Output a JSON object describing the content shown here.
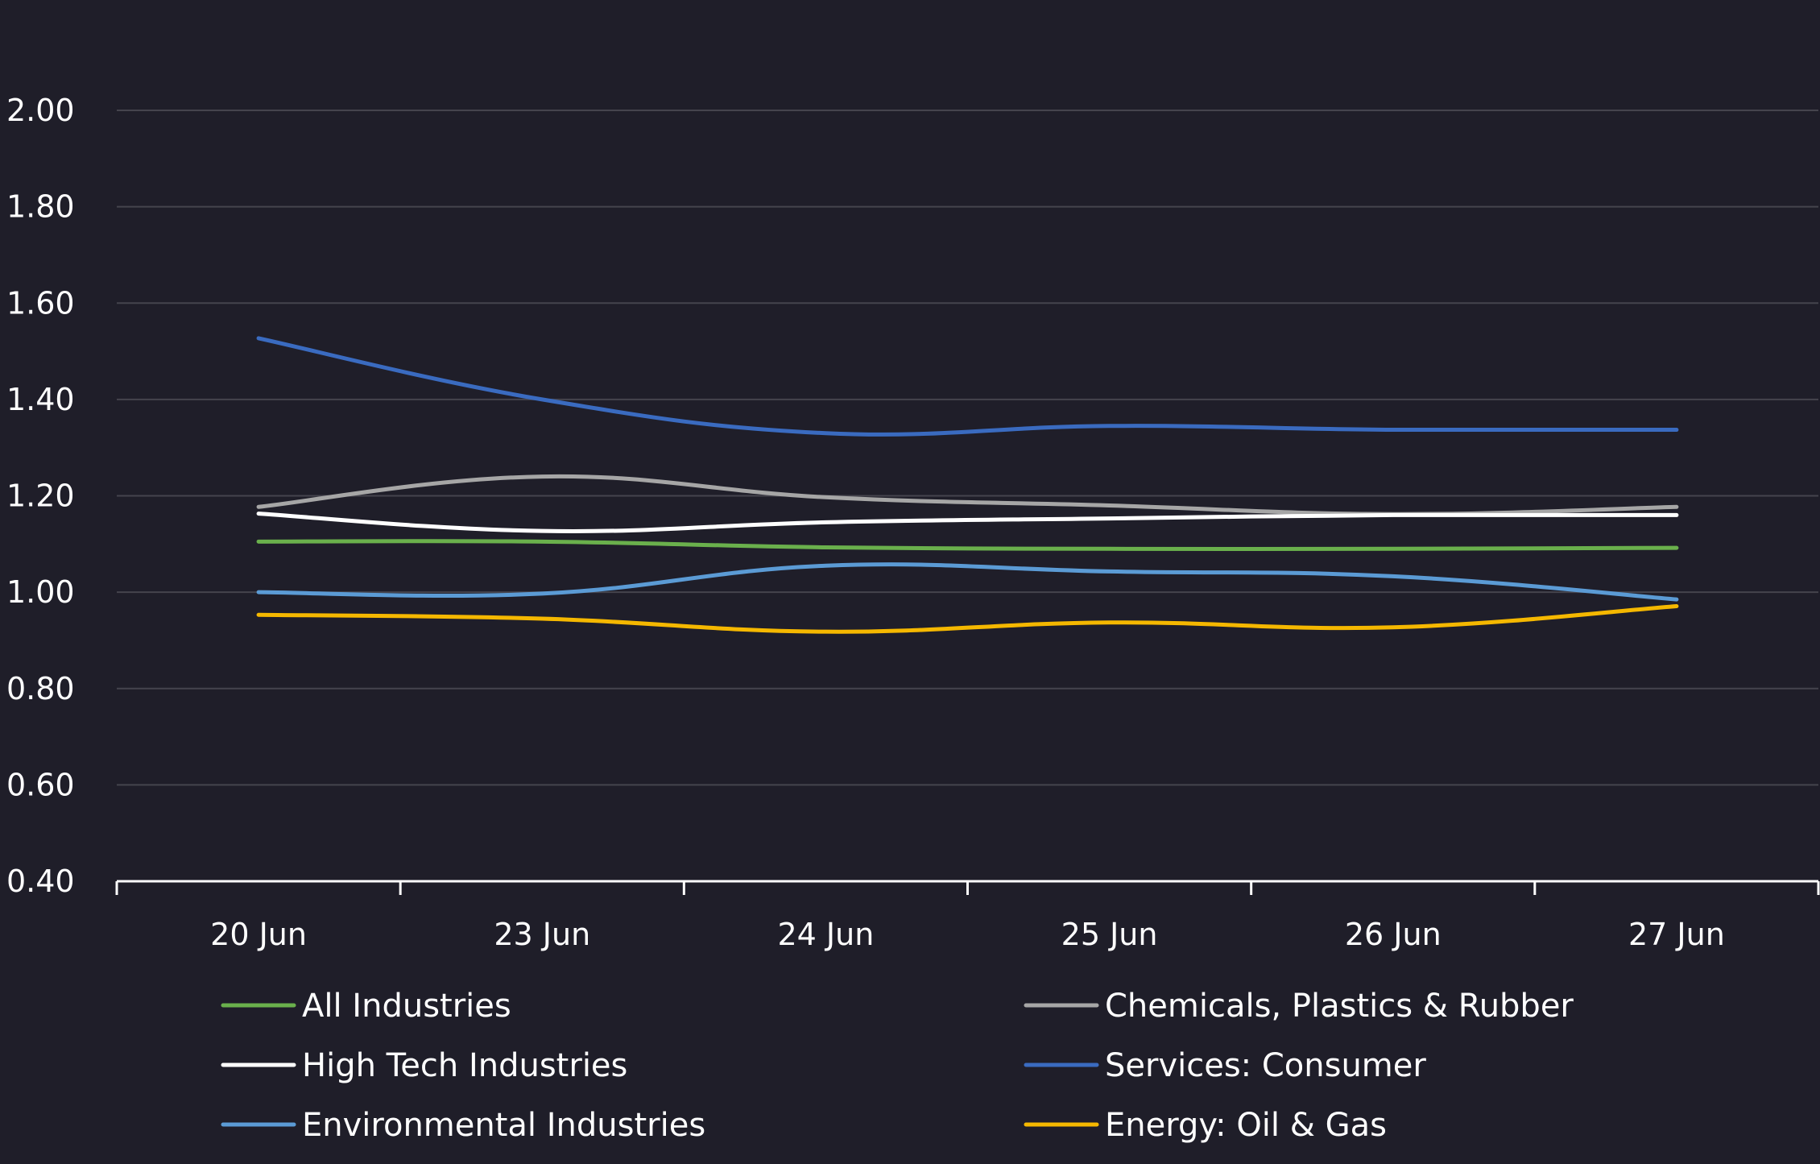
{
  "chart_data": {
    "type": "line",
    "title": "",
    "xlabel": "",
    "ylabel": "",
    "ylim": [
      0.4,
      2.0
    ],
    "yticks": [
      "0.40",
      "0.60",
      "0.80",
      "1.00",
      "1.20",
      "1.40",
      "1.60",
      "1.80",
      "2.00"
    ],
    "grid": true,
    "legend_position": "bottom",
    "categories": [
      "20 Jun",
      "23 Jun",
      "24 Jun",
      "25 Jun",
      "26 Jun",
      "27 Jun"
    ],
    "series": [
      {
        "name": "All Industries",
        "color": "#6ab04c",
        "values": [
          1.105,
          1.105,
          1.093,
          1.09,
          1.09,
          1.092
        ]
      },
      {
        "name": "Chemicals, Plastics & Rubber",
        "color": "#a6a6a6",
        "values": [
          1.177,
          1.24,
          1.197,
          1.18,
          1.162,
          1.177
        ]
      },
      {
        "name": "High Tech Industries",
        "color": "#ffffff",
        "values": [
          1.163,
          1.127,
          1.145,
          1.153,
          1.16,
          1.16
        ]
      },
      {
        "name": "Services: Consumer",
        "color": "#3a6bc0",
        "values": [
          1.527,
          1.4,
          1.33,
          1.345,
          1.337,
          1.337
        ]
      },
      {
        "name": "Environmental Industries",
        "color": "#5b9bd5",
        "values": [
          1.0,
          0.997,
          1.055,
          1.043,
          1.033,
          0.985
        ]
      },
      {
        "name": "Energy: Oil & Gas",
        "color": "#f5b800",
        "values": [
          0.953,
          0.945,
          0.918,
          0.937,
          0.927,
          0.971
        ]
      }
    ]
  }
}
